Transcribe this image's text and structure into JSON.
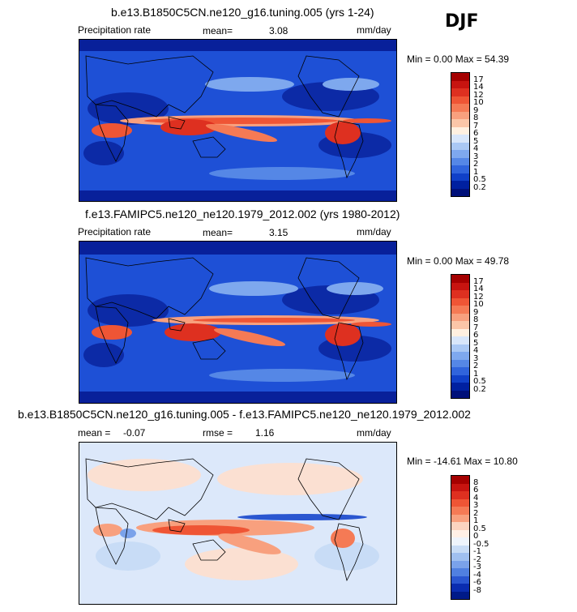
{
  "season": "DJF",
  "panels": [
    {
      "title": "b.e13.B1850C5CN.ne120_g16.tuning.005 (yrs 1-24)",
      "left_label": "Precipitation rate",
      "stat_label": "mean=",
      "stat_value": "3.08",
      "units": "mm/day",
      "minmax": "Min =    0.00 Max =   54.39",
      "colorbar_labels": [
        "17",
        "14",
        "12",
        "10",
        "9",
        "8",
        "7",
        "6",
        "5",
        "4",
        "3",
        "2",
        "1",
        "0.5",
        "0.2"
      ],
      "colors": [
        "#a50000",
        "#c71410",
        "#de3020",
        "#ef5535",
        "#f57a55",
        "#f8a07e",
        "#fbc6a8",
        "#fff0e0",
        "#d8e6fa",
        "#aac8f4",
        "#7ea8ee",
        "#5587e6",
        "#3064dc",
        "#1040c8",
        "#0020a0",
        "#00107a"
      ]
    },
    {
      "title": "f.e13.FAMIPC5.ne120_ne120.1979_2012.002 (yrs 1980-2012)",
      "left_label": "Precipitation rate",
      "stat_label": "mean=",
      "stat_value": "3.15",
      "units": "mm/day",
      "minmax": "Min =    0.00 Max =   49.78",
      "colorbar_labels": [
        "17",
        "14",
        "12",
        "10",
        "9",
        "8",
        "7",
        "6",
        "5",
        "4",
        "3",
        "2",
        "1",
        "0.5",
        "0.2"
      ],
      "colors": [
        "#a50000",
        "#c71410",
        "#de3020",
        "#ef5535",
        "#f57a55",
        "#f8a07e",
        "#fbc6a8",
        "#fff0e0",
        "#d8e6fa",
        "#aac8f4",
        "#7ea8ee",
        "#5587e6",
        "#3064dc",
        "#1040c8",
        "#0020a0",
        "#00107a"
      ]
    },
    {
      "title": "b.e13.B1850C5CN.ne120_g16.tuning.005 - f.e13.FAMIPC5.ne120_ne120.1979_2012.002",
      "left_label": "mean =",
      "left_value": "-0.07",
      "stat_label": "rmse =",
      "stat_value": "1.16",
      "units": "mm/day",
      "minmax": "Min = -14.61 Max =   10.80",
      "colorbar_labels": [
        "8",
        "6",
        "4",
        "3",
        "2",
        "1",
        "0.5",
        "0",
        "-0.5",
        "-1",
        "-2",
        "-3",
        "-4",
        "-6",
        "-8"
      ],
      "colors": [
        "#a50000",
        "#c71410",
        "#de3020",
        "#ef5535",
        "#f57a55",
        "#f8a07e",
        "#fbd4c0",
        "#fff0e6",
        "#eef4fc",
        "#c8dcf6",
        "#a0c0f0",
        "#7aa2ea",
        "#5080e0",
        "#2a56d0",
        "#0a2cb0",
        "#001a88"
      ]
    }
  ]
}
